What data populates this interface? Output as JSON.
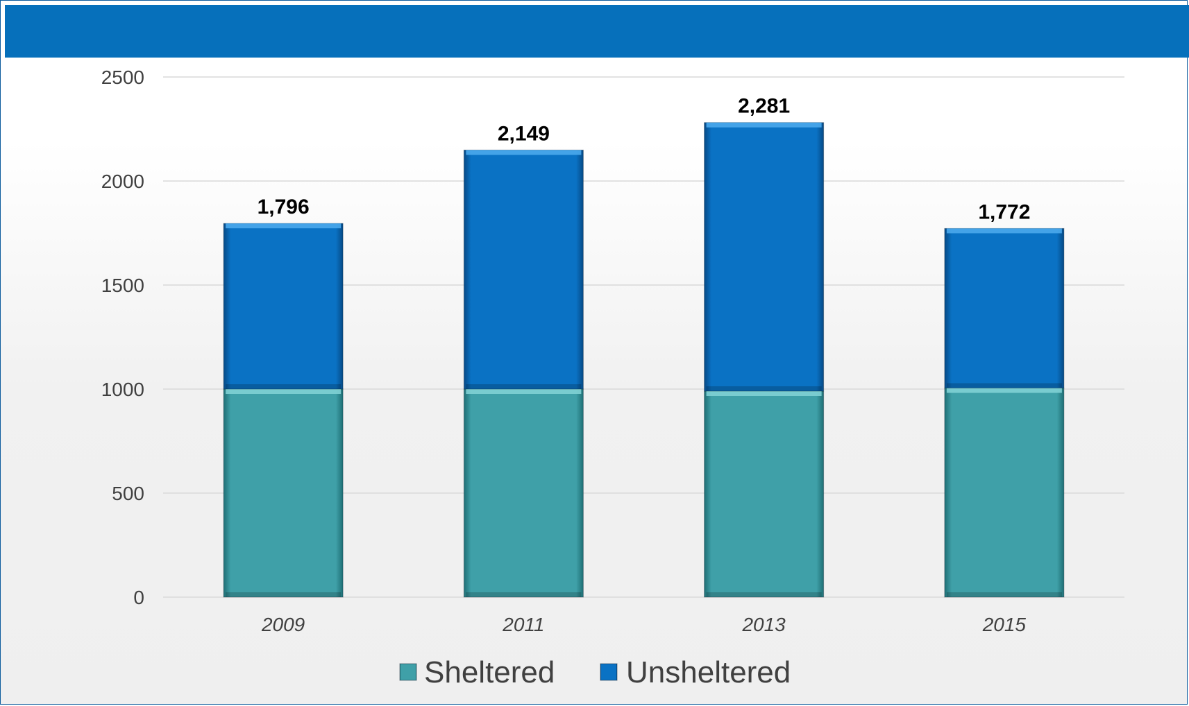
{
  "colors": {
    "header": "#0670bb",
    "sheltered": "#3fa0a8",
    "unsheltered": "#0a72c4",
    "grid": "#d9d9d9"
  },
  "chart_data": {
    "type": "bar",
    "stacked": true,
    "categories": [
      "2009",
      "2011",
      "2013",
      "2015"
    ],
    "series": [
      {
        "name": "Sheltered",
        "values": [
          1000,
          1000,
          990,
          1005
        ]
      },
      {
        "name": "Unsheltered",
        "values": [
          796,
          1149,
          1291,
          767
        ]
      }
    ],
    "totals": [
      "1,796",
      "2,149",
      "2,281",
      "1,772"
    ],
    "total_values": [
      1796,
      2149,
      2281,
      1772
    ],
    "yticks": [
      "0",
      "500",
      "1000",
      "1500",
      "2000",
      "2500"
    ],
    "ylim": [
      0,
      2500
    ],
    "grid": true,
    "legend_position": "bottom",
    "title": "",
    "xlabel": "",
    "ylabel": ""
  }
}
